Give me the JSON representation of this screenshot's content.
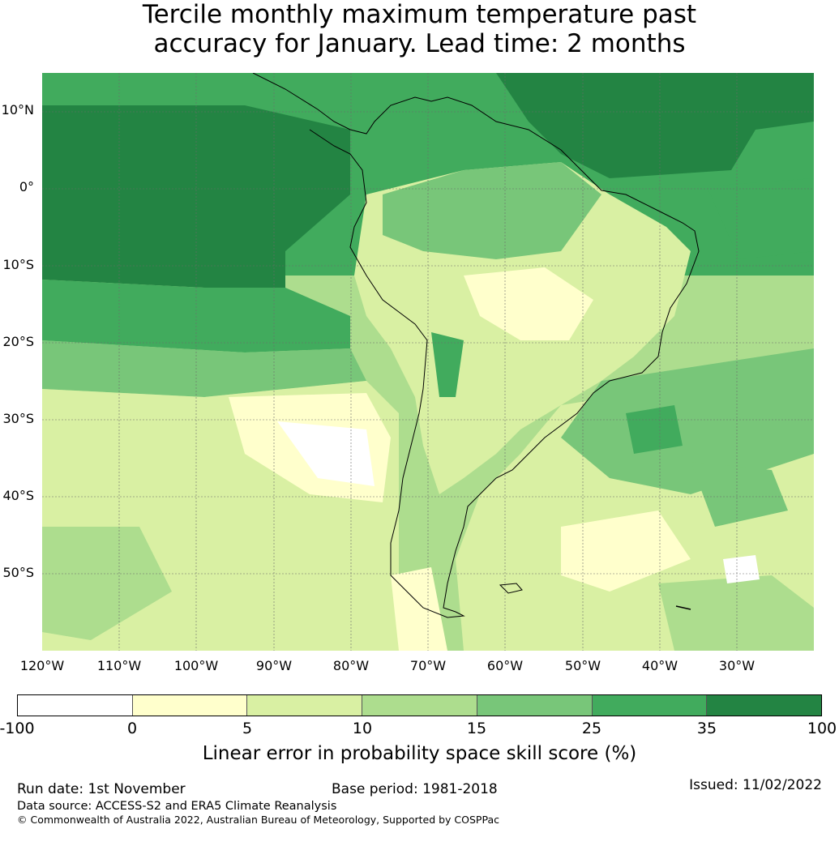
{
  "title": {
    "line1": "Tercile monthly maximum temperature past",
    "line2": "accuracy for January. Lead time: 2 months"
  },
  "map": {
    "lat_labels": [
      "10°N",
      "0°",
      "10°S",
      "20°S",
      "30°S",
      "40°S",
      "50°S"
    ],
    "lon_labels": [
      "120°W",
      "110°W",
      "100°W",
      "90°W",
      "80°W",
      "70°W",
      "60°W",
      "50°W",
      "40°W",
      "30°W"
    ]
  },
  "colorbar": {
    "ticks": [
      "-100",
      "0",
      "5",
      "10",
      "15",
      "25",
      "35",
      "100"
    ],
    "colors": [
      "#ffffff",
      "#ffffcc",
      "#d9f0a3",
      "#addd8e",
      "#78c679",
      "#41ab5d",
      "#238443"
    ],
    "label": "Linear error in probability space skill score (%)"
  },
  "footer": {
    "run_date": "Run date: 1st November",
    "base_period": "Base period: 1981-2018",
    "issued": "Issued: 11/02/2022",
    "data_source": "Data source: ACCESS-S2 and ERA5 Climate Reanalysis",
    "copyright": "© Commonwealth of Australia 2022, Australian Bureau of Meteorology, Supported by COSPPac"
  }
}
